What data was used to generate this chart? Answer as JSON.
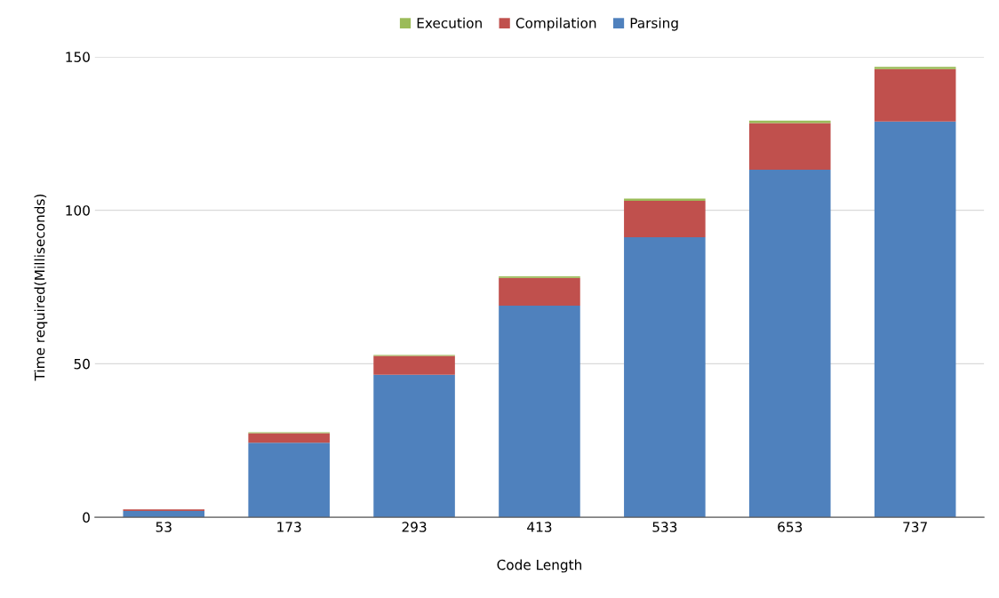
{
  "chart_data": {
    "type": "bar",
    "stacked": true,
    "xlabel": "Code Length",
    "ylabel": "Time required(Milliseconds)",
    "categories": [
      "53",
      "173",
      "293",
      "413",
      "533",
      "653",
      "737"
    ],
    "series": [
      {
        "name": "Parsing",
        "color": "#4f81bd",
        "values": [
          2.1,
          24.3,
          46.4,
          68.9,
          91.2,
          113.2,
          128.9
        ]
      },
      {
        "name": "Compilation",
        "color": "#c0504d",
        "values": [
          0.5,
          3.1,
          6.2,
          9.1,
          11.9,
          15.2,
          17.1
        ]
      },
      {
        "name": "Execution",
        "color": "#9bbb59",
        "values": [
          null,
          0.3,
          0.3,
          0.5,
          0.7,
          0.8,
          0.7
        ]
      }
    ],
    "ylim": [
      0,
      150
    ],
    "yticks": [
      0,
      50,
      100,
      150
    ],
    "grid": "y",
    "legend": "top"
  }
}
